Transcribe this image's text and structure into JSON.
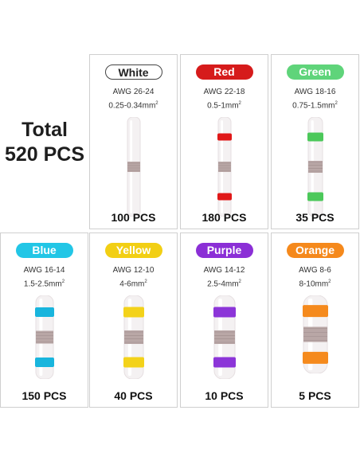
{
  "total": {
    "line1": "Total",
    "line2": "520 PCS"
  },
  "cards": [
    {
      "label": "White",
      "awg": "AWG 26-24",
      "mm": "0.25-0.34mm",
      "count": "100 PCS",
      "color": "#ffffff",
      "band": "#f4dcdc",
      "text_color": "#222222"
    },
    {
      "label": "Red",
      "awg": "AWG 22-18",
      "mm": "0.5-1mm",
      "count": "180 PCS",
      "color": "#d61b1b",
      "band": "#e01818",
      "text_color": "#ffffff"
    },
    {
      "label": "Green",
      "awg": "AWG 18-16",
      "mm": "0.75-1.5mm",
      "count": "35 PCS",
      "color": "#5fd47a",
      "band": "#4cc85a",
      "text_color": "#ffffff"
    },
    {
      "label": "Blue",
      "awg": "AWG 16-14",
      "mm": "1.5-2.5mm",
      "count": "150 PCS",
      "color": "#22c6e6",
      "band": "#19b5dd",
      "text_color": "#ffffff"
    },
    {
      "label": "Yellow",
      "awg": "AWG 12-10",
      "mm": "4-6mm",
      "count": "40 PCS",
      "color": "#f2cf14",
      "band": "#f3d21a",
      "text_color": "#ffffff"
    },
    {
      "label": "Purple",
      "awg": "AWG 14-12",
      "mm": "2.5-4mm",
      "count": "10 PCS",
      "color": "#8b2fd6",
      "band": "#8c35d8",
      "text_color": "#ffffff"
    },
    {
      "label": "Orange",
      "awg": "AWG 8-6",
      "mm": "8-10mm",
      "count": "5 PCS",
      "color": "#f5891c",
      "band": "#f58a1d",
      "text_color": "#ffffff"
    }
  ]
}
